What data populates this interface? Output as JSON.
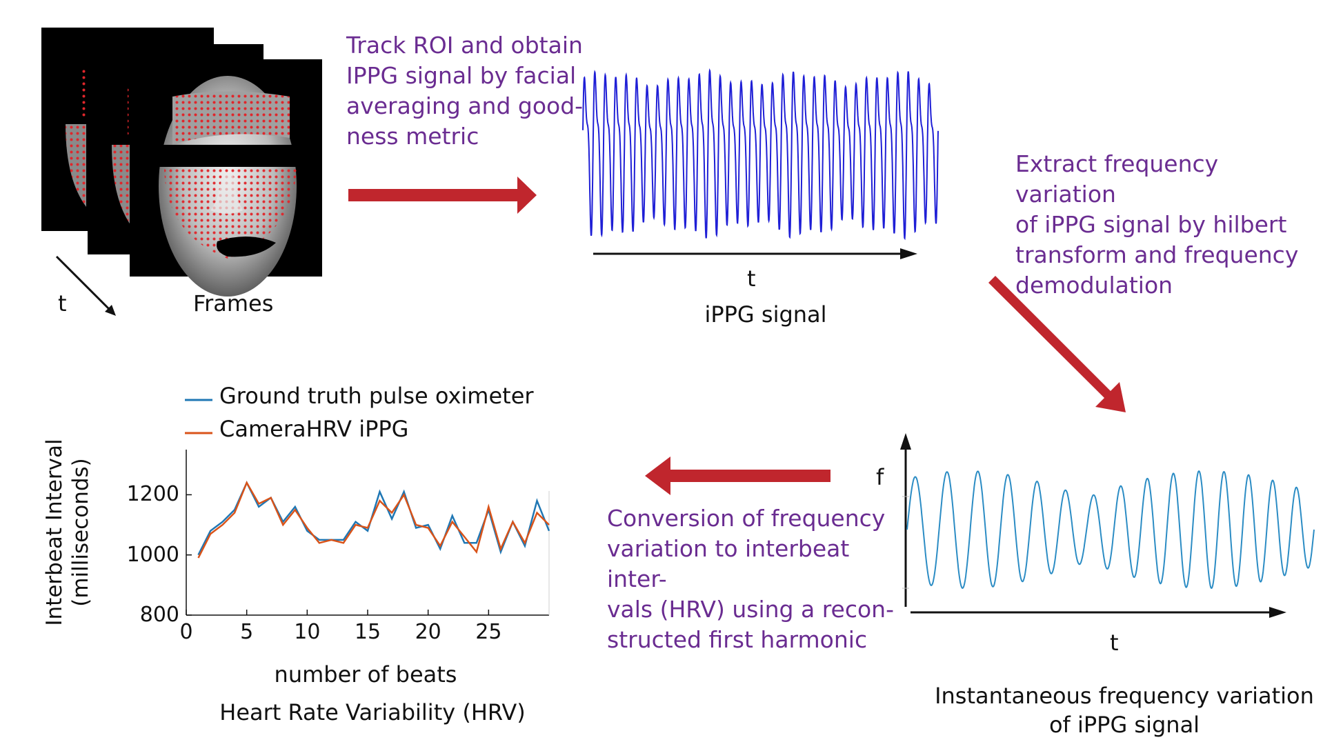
{
  "colors": {
    "arrow": "#c0262d",
    "ippg_signal": "#1f1fd6",
    "freq_signal": "#2b8cc4",
    "ground_truth": "#1f77b4",
    "camera_hrv": "#d95319",
    "annotation_text": "#6a2c91"
  },
  "frames": {
    "time_label": "t",
    "caption": "Frames"
  },
  "steps": {
    "step1": "Track ROI and obtain\nIPPG signal by facial\naveraging and good-\nness metric",
    "step2": "Extract frequency variation\nof iPPG signal by hilbert\ntransform and frequency\ndemodulation",
    "step3": "Conversion of frequency\nvariation to interbeat inter-\nvals (HRV) using a recon-\nstructed first harmonic"
  },
  "ippg_panel": {
    "axis_label": "t",
    "caption": "iPPG signal"
  },
  "freq_panel": {
    "y_label": "f",
    "x_label": "t",
    "caption": "Instantaneous frequency variation\nof iPPG signal"
  },
  "chart_data": {
    "type": "line",
    "title": "",
    "xlabel": "number of beats",
    "ylabel": "Interbeat Interval\n(milliseconds)",
    "caption": "Heart Rate Variability (HRV)",
    "xlim": [
      0,
      30
    ],
    "ylim": [
      800,
      1350
    ],
    "x_ticks": [
      0,
      5,
      10,
      15,
      20,
      25
    ],
    "y_ticks": [
      800,
      1000,
      1200
    ],
    "legend_position": "top",
    "x": [
      1,
      2,
      3,
      4,
      5,
      6,
      7,
      8,
      9,
      10,
      11,
      12,
      13,
      14,
      15,
      16,
      17,
      18,
      19,
      20,
      21,
      22,
      23,
      24,
      25,
      26,
      27,
      28,
      29,
      30
    ],
    "series": [
      {
        "name": "Ground truth pulse oximeter",
        "color": "#1f77b4",
        "values": [
          1000,
          1080,
          1110,
          1150,
          1240,
          1160,
          1190,
          1110,
          1160,
          1080,
          1050,
          1050,
          1050,
          1110,
          1080,
          1210,
          1120,
          1210,
          1090,
          1100,
          1020,
          1130,
          1040,
          1040,
          1150,
          1010,
          1110,
          1030,
          1180,
          1080
        ]
      },
      {
        "name": "CameraHRV iPPG",
        "color": "#d95319",
        "values": [
          990,
          1070,
          1100,
          1140,
          1240,
          1170,
          1190,
          1100,
          1150,
          1090,
          1040,
          1050,
          1040,
          1100,
          1090,
          1180,
          1140,
          1200,
          1100,
          1090,
          1030,
          1110,
          1060,
          1010,
          1160,
          1020,
          1110,
          1040,
          1140,
          1100
        ]
      }
    ]
  }
}
